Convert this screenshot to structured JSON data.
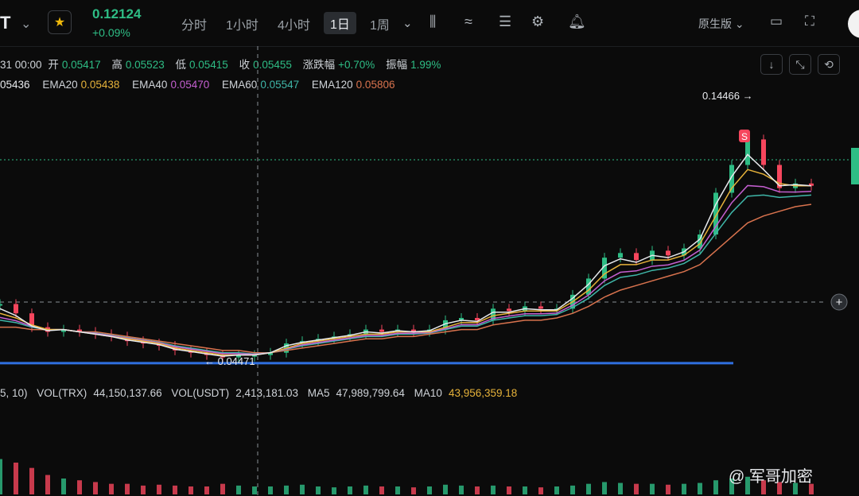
{
  "header": {
    "symbol_fragment": "T",
    "price": "0.12124",
    "change": "+0.09%",
    "timeframes": [
      "分时",
      "1小时",
      "4小时",
      "1日",
      "1周"
    ],
    "active_timeframe": "1日",
    "native_label": "原生版"
  },
  "ohlc": {
    "date": "31 00:00",
    "open_label": "开",
    "open": "0.05417",
    "high_label": "高",
    "high": "0.05523",
    "low_label": "低",
    "low": "0.05415",
    "close_label": "收",
    "close": "0.05455",
    "chg_label": "涨跌幅",
    "chg": "+0.70%",
    "amp_label": "振幅",
    "amp": "1.99%"
  },
  "ema": {
    "ema10_fragment": "05436",
    "ema20_label": "EMA20",
    "ema20": "0.05438",
    "ema40_label": "EMA40",
    "ema40": "0.05470",
    "ema60_label": "EMA60",
    "ema60": "0.05547",
    "ema120_label": "EMA120",
    "ema120": "0.05806"
  },
  "volume": {
    "params": "5, 10)",
    "vol_trx_label": "VOL(TRX)",
    "vol_trx": "44,150,137.66",
    "vol_usdt_label": "VOL(USDT)",
    "vol_usdt": "2,413,181.03",
    "ma5_label": "MA5",
    "ma5": "47,989,799.64",
    "ma10_label": "MA10",
    "ma10": "43,956,359.18"
  },
  "annotations": {
    "high_marker": "0.14466 →",
    "low_marker": "← 0.04471",
    "signal_badge": "S"
  },
  "watermark": "@ 军哥加密",
  "colors": {
    "up": "#2ebd85",
    "down": "#f6465d",
    "ema10": "#e8eaed",
    "ema20": "#e6b23a",
    "ema40": "#c45fd0",
    "ema60": "#3fb6a8",
    "ema120": "#d9734e",
    "support_line": "#2f6fe0"
  },
  "chart_data": {
    "type": "candlestick",
    "price_ylim": [
      0.04,
      0.16
    ],
    "support_level": 0.0445,
    "high_point": 0.14466,
    "low_point": 0.04471,
    "close_series": [
      0.07,
      0.066,
      0.06,
      0.058,
      0.059,
      0.058,
      0.057,
      0.056,
      0.054,
      0.053,
      0.052,
      0.05,
      0.049,
      0.048,
      0.047,
      0.048,
      0.048,
      0.049,
      0.053,
      0.054,
      0.055,
      0.056,
      0.057,
      0.059,
      0.058,
      0.059,
      0.058,
      0.059,
      0.063,
      0.064,
      0.063,
      0.068,
      0.067,
      0.069,
      0.068,
      0.068,
      0.074,
      0.081,
      0.09,
      0.092,
      0.089,
      0.093,
      0.091,
      0.094,
      0.1,
      0.118,
      0.13,
      0.141,
      0.13,
      0.12,
      0.122,
      0.121
    ],
    "ema20_series": [
      0.066,
      0.064,
      0.061,
      0.059,
      0.059,
      0.058,
      0.057,
      0.056,
      0.055,
      0.054,
      0.053,
      0.051,
      0.05,
      0.049,
      0.048,
      0.048,
      0.048,
      0.049,
      0.051,
      0.053,
      0.054,
      0.055,
      0.056,
      0.057,
      0.057,
      0.058,
      0.058,
      0.058,
      0.06,
      0.062,
      0.062,
      0.065,
      0.066,
      0.067,
      0.067,
      0.067,
      0.071,
      0.076,
      0.083,
      0.087,
      0.087,
      0.089,
      0.089,
      0.091,
      0.096,
      0.108,
      0.12,
      0.128,
      0.126,
      0.122,
      0.121,
      0.121
    ],
    "ema120_series": [
      0.06,
      0.06,
      0.059,
      0.059,
      0.059,
      0.058,
      0.058,
      0.057,
      0.056,
      0.055,
      0.054,
      0.053,
      0.052,
      0.051,
      0.05,
      0.05,
      0.049,
      0.049,
      0.05,
      0.051,
      0.052,
      0.053,
      0.054,
      0.055,
      0.055,
      0.056,
      0.056,
      0.057,
      0.058,
      0.059,
      0.059,
      0.061,
      0.062,
      0.063,
      0.063,
      0.064,
      0.066,
      0.069,
      0.073,
      0.076,
      0.078,
      0.08,
      0.082,
      0.084,
      0.087,
      0.093,
      0.099,
      0.105,
      0.108,
      0.11,
      0.112,
      0.113
    ],
    "volume_series": [
      40,
      36,
      30,
      22,
      18,
      16,
      14,
      12,
      12,
      10,
      11,
      10,
      9,
      9,
      12,
      10,
      9,
      9,
      10,
      11,
      9,
      8,
      9,
      10,
      9,
      9,
      8,
      9,
      11,
      10,
      9,
      10,
      9,
      9,
      8,
      9,
      10,
      12,
      14,
      13,
      12,
      12,
      11,
      12,
      13,
      16,
      18,
      20,
      16,
      14,
      13,
      12
    ]
  }
}
